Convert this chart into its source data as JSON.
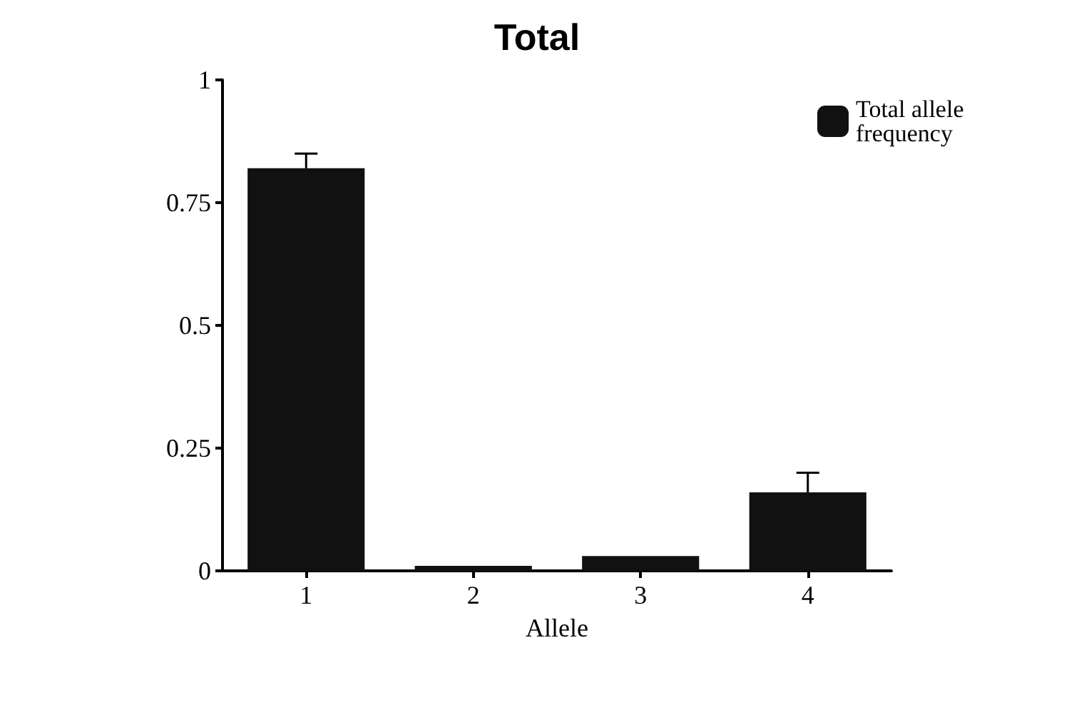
{
  "chart_data": {
    "type": "bar",
    "title": "Total",
    "xlabel": "Allele",
    "categories": [
      "1",
      "2",
      "3",
      "4"
    ],
    "series": [
      {
        "name": "Total allele frequency",
        "color": "#111111",
        "values": [
          0.82,
          0.01,
          0.03,
          0.16
        ],
        "errors": [
          [
            0.82,
            0.85
          ],
          null,
          null,
          [
            0.16,
            0.2
          ]
        ]
      }
    ],
    "ylim": [
      0,
      1
    ],
    "yticks": [
      0,
      0.25,
      0.5,
      0.75,
      1
    ],
    "grid": false,
    "legend": "top right"
  }
}
